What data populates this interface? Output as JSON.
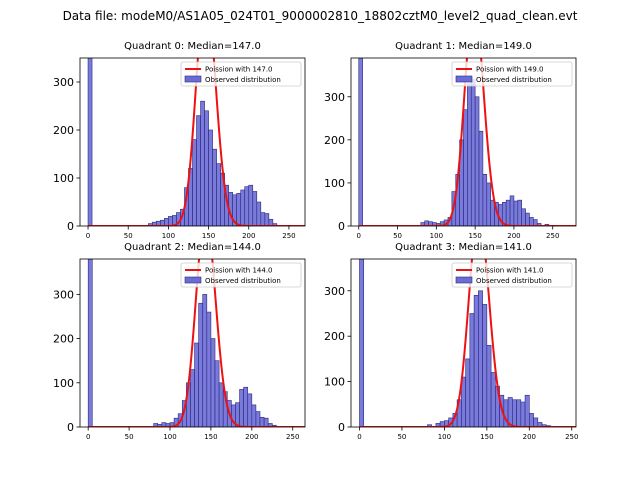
{
  "figure": {
    "suptitle": "Data file: modeM0/AS1A05_024T01_9000002810_18802cztM0_level2_quad_clean.evt"
  },
  "colors": {
    "bars": "#6b6bd6",
    "bar_edge": "#2a2a80",
    "poisson_line": "#ee1111"
  },
  "chart_data": [
    {
      "type": "bar",
      "title": "Quadrant 0: Median=147.0",
      "median": 147.0,
      "xlim": [
        -10,
        270
      ],
      "ylim": [
        0,
        350
      ],
      "xticks": [
        0,
        50,
        100,
        150,
        200,
        250
      ],
      "yticks": [
        0,
        100,
        200,
        300
      ],
      "bin_width": 5,
      "legend": {
        "placement": "top-right",
        "entries": [
          "Poission with 147.0",
          "Observed distribution"
        ]
      },
      "bins": [
        {
          "x": 0,
          "count": 350
        },
        {
          "x": 75,
          "count": 5
        },
        {
          "x": 80,
          "count": 8
        },
        {
          "x": 85,
          "count": 10
        },
        {
          "x": 90,
          "count": 12
        },
        {
          "x": 95,
          "count": 16
        },
        {
          "x": 100,
          "count": 20
        },
        {
          "x": 105,
          "count": 22
        },
        {
          "x": 110,
          "count": 28
        },
        {
          "x": 115,
          "count": 35
        },
        {
          "x": 120,
          "count": 80
        },
        {
          "x": 125,
          "count": 120
        },
        {
          "x": 130,
          "count": 180
        },
        {
          "x": 135,
          "count": 230
        },
        {
          "x": 140,
          "count": 260
        },
        {
          "x": 145,
          "count": 240
        },
        {
          "x": 150,
          "count": 200
        },
        {
          "x": 155,
          "count": 160
        },
        {
          "x": 160,
          "count": 130
        },
        {
          "x": 165,
          "count": 110
        },
        {
          "x": 170,
          "count": 85
        },
        {
          "x": 175,
          "count": 70
        },
        {
          "x": 180,
          "count": 65
        },
        {
          "x": 185,
          "count": 68
        },
        {
          "x": 190,
          "count": 75
        },
        {
          "x": 195,
          "count": 82
        },
        {
          "x": 200,
          "count": 85
        },
        {
          "x": 205,
          "count": 72
        },
        {
          "x": 210,
          "count": 50
        },
        {
          "x": 215,
          "count": 28
        },
        {
          "x": 220,
          "count": 26
        },
        {
          "x": 225,
          "count": 14
        },
        {
          "x": 230,
          "count": 5
        }
      ]
    },
    {
      "type": "bar",
      "title": "Quadrant 1: Median=149.0",
      "median": 149.0,
      "xlim": [
        -10,
        280
      ],
      "ylim": [
        0,
        390
      ],
      "xticks": [
        0,
        50,
        100,
        150,
        200,
        250
      ],
      "yticks": [
        0,
        100,
        200,
        300
      ],
      "bin_width": 5,
      "legend": {
        "placement": "top-right",
        "entries": [
          "Poission with 149.0",
          "Observed distribution"
        ]
      },
      "bins": [
        {
          "x": 0,
          "count": 390
        },
        {
          "x": 80,
          "count": 8
        },
        {
          "x": 85,
          "count": 12
        },
        {
          "x": 90,
          "count": 10
        },
        {
          "x": 95,
          "count": 8
        },
        {
          "x": 100,
          "count": 6
        },
        {
          "x": 105,
          "count": 10
        },
        {
          "x": 110,
          "count": 14
        },
        {
          "x": 115,
          "count": 20
        },
        {
          "x": 120,
          "count": 80
        },
        {
          "x": 125,
          "count": 120
        },
        {
          "x": 130,
          "count": 200
        },
        {
          "x": 135,
          "count": 270
        },
        {
          "x": 140,
          "count": 330
        },
        {
          "x": 145,
          "count": 340
        },
        {
          "x": 150,
          "count": 300
        },
        {
          "x": 155,
          "count": 220
        },
        {
          "x": 160,
          "count": 120
        },
        {
          "x": 165,
          "count": 100
        },
        {
          "x": 170,
          "count": 60
        },
        {
          "x": 175,
          "count": 55
        },
        {
          "x": 180,
          "count": 50
        },
        {
          "x": 185,
          "count": 55
        },
        {
          "x": 190,
          "count": 60
        },
        {
          "x": 195,
          "count": 70
        },
        {
          "x": 200,
          "count": 58
        },
        {
          "x": 205,
          "count": 60
        },
        {
          "x": 210,
          "count": 40
        },
        {
          "x": 215,
          "count": 30
        },
        {
          "x": 220,
          "count": 20
        },
        {
          "x": 225,
          "count": 15
        },
        {
          "x": 230,
          "count": 6
        },
        {
          "x": 240,
          "count": 4
        }
      ]
    },
    {
      "type": "bar",
      "title": "Quadrant 2: Median=144.0",
      "median": 144.0,
      "xlim": [
        -10,
        265
      ],
      "ylim": [
        0,
        380
      ],
      "xticks": [
        0,
        50,
        100,
        150,
        200,
        250
      ],
      "yticks": [
        0,
        100,
        200,
        300
      ],
      "bin_width": 5,
      "legend": {
        "placement": "top-right",
        "entries": [
          "Poission with 144.0",
          "Observed distribution"
        ]
      },
      "bins": [
        {
          "x": 0,
          "count": 380
        },
        {
          "x": 80,
          "count": 8
        },
        {
          "x": 85,
          "count": 6
        },
        {
          "x": 90,
          "count": 10
        },
        {
          "x": 95,
          "count": 8
        },
        {
          "x": 100,
          "count": 10
        },
        {
          "x": 105,
          "count": 20
        },
        {
          "x": 110,
          "count": 30
        },
        {
          "x": 115,
          "count": 60
        },
        {
          "x": 120,
          "count": 100
        },
        {
          "x": 125,
          "count": 130
        },
        {
          "x": 130,
          "count": 190
        },
        {
          "x": 135,
          "count": 280
        },
        {
          "x": 140,
          "count": 300
        },
        {
          "x": 145,
          "count": 260
        },
        {
          "x": 150,
          "count": 200
        },
        {
          "x": 155,
          "count": 150
        },
        {
          "x": 160,
          "count": 100
        },
        {
          "x": 165,
          "count": 80
        },
        {
          "x": 170,
          "count": 60
        },
        {
          "x": 175,
          "count": 50
        },
        {
          "x": 180,
          "count": 55
        },
        {
          "x": 185,
          "count": 85
        },
        {
          "x": 190,
          "count": 90
        },
        {
          "x": 195,
          "count": 75
        },
        {
          "x": 200,
          "count": 50
        },
        {
          "x": 205,
          "count": 35
        },
        {
          "x": 210,
          "count": 22
        },
        {
          "x": 215,
          "count": 20
        },
        {
          "x": 220,
          "count": 8
        },
        {
          "x": 225,
          "count": 4
        }
      ]
    },
    {
      "type": "bar",
      "title": "Quadrant 3: Median=141.0",
      "median": 141.0,
      "xlim": [
        -10,
        255
      ],
      "ylim": [
        0,
        370
      ],
      "xticks": [
        0,
        50,
        100,
        150,
        200,
        250
      ],
      "yticks": [
        0,
        100,
        200,
        300
      ],
      "bin_width": 5,
      "legend": {
        "placement": "top-right",
        "entries": [
          "Poission with 141.0",
          "Observed distribution"
        ]
      },
      "bins": [
        {
          "x": 0,
          "count": 370
        },
        {
          "x": 80,
          "count": 5
        },
        {
          "x": 90,
          "count": 8
        },
        {
          "x": 95,
          "count": 12
        },
        {
          "x": 100,
          "count": 14
        },
        {
          "x": 105,
          "count": 20
        },
        {
          "x": 110,
          "count": 30
        },
        {
          "x": 115,
          "count": 60
        },
        {
          "x": 120,
          "count": 110
        },
        {
          "x": 125,
          "count": 150
        },
        {
          "x": 130,
          "count": 250
        },
        {
          "x": 135,
          "count": 290
        },
        {
          "x": 140,
          "count": 300
        },
        {
          "x": 145,
          "count": 270
        },
        {
          "x": 150,
          "count": 180
        },
        {
          "x": 155,
          "count": 120
        },
        {
          "x": 160,
          "count": 90
        },
        {
          "x": 165,
          "count": 70
        },
        {
          "x": 170,
          "count": 60
        },
        {
          "x": 175,
          "count": 65
        },
        {
          "x": 180,
          "count": 60
        },
        {
          "x": 185,
          "count": 60
        },
        {
          "x": 190,
          "count": 55
        },
        {
          "x": 195,
          "count": 70
        },
        {
          "x": 200,
          "count": 30
        },
        {
          "x": 205,
          "count": 20
        },
        {
          "x": 210,
          "count": 10
        },
        {
          "x": 215,
          "count": 5
        },
        {
          "x": 220,
          "count": 3
        }
      ]
    }
  ]
}
